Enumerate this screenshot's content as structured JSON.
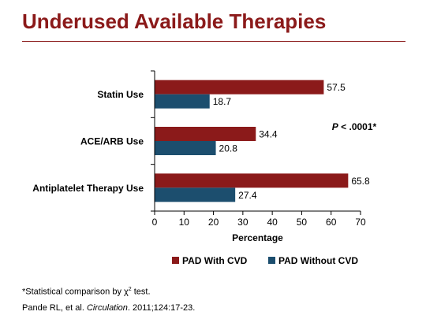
{
  "slide": {
    "title": "Underused Available Therapies"
  },
  "chart_data": {
    "type": "bar",
    "orientation": "horizontal",
    "categories": [
      "Statin Use",
      "ACE/ARB Use",
      "Antiplatelet Therapy Use"
    ],
    "series": [
      {
        "name": "PAD With CVD",
        "color": "#8b1a1a",
        "values": [
          57.5,
          34.4,
          65.8
        ]
      },
      {
        "name": "PAD Without CVD",
        "color": "#1c4e6e",
        "values": [
          18.7,
          20.8,
          27.4
        ]
      }
    ],
    "data_labels": [
      [
        "57.5",
        "34.4",
        "65.8"
      ],
      [
        "18.7",
        "20.8",
        "27.4"
      ]
    ],
    "xlabel": "Percentage",
    "xlim": [
      0,
      70
    ],
    "xticks": [
      "0",
      "10",
      "20",
      "30",
      "40",
      "50",
      "60",
      "70"
    ],
    "grid": false,
    "legend_position": "bottom",
    "annotation": {
      "p_letter": "P",
      "p_text": " < .0001*"
    }
  },
  "footnotes": {
    "stat_prefix": "*Statistical comparison by χ",
    "stat_sup": "2",
    "stat_suffix": " test.",
    "ref_authors": "Pande RL, et al. ",
    "ref_journal": "Circulation",
    "ref_rest": ". 2011;124:17-23."
  }
}
